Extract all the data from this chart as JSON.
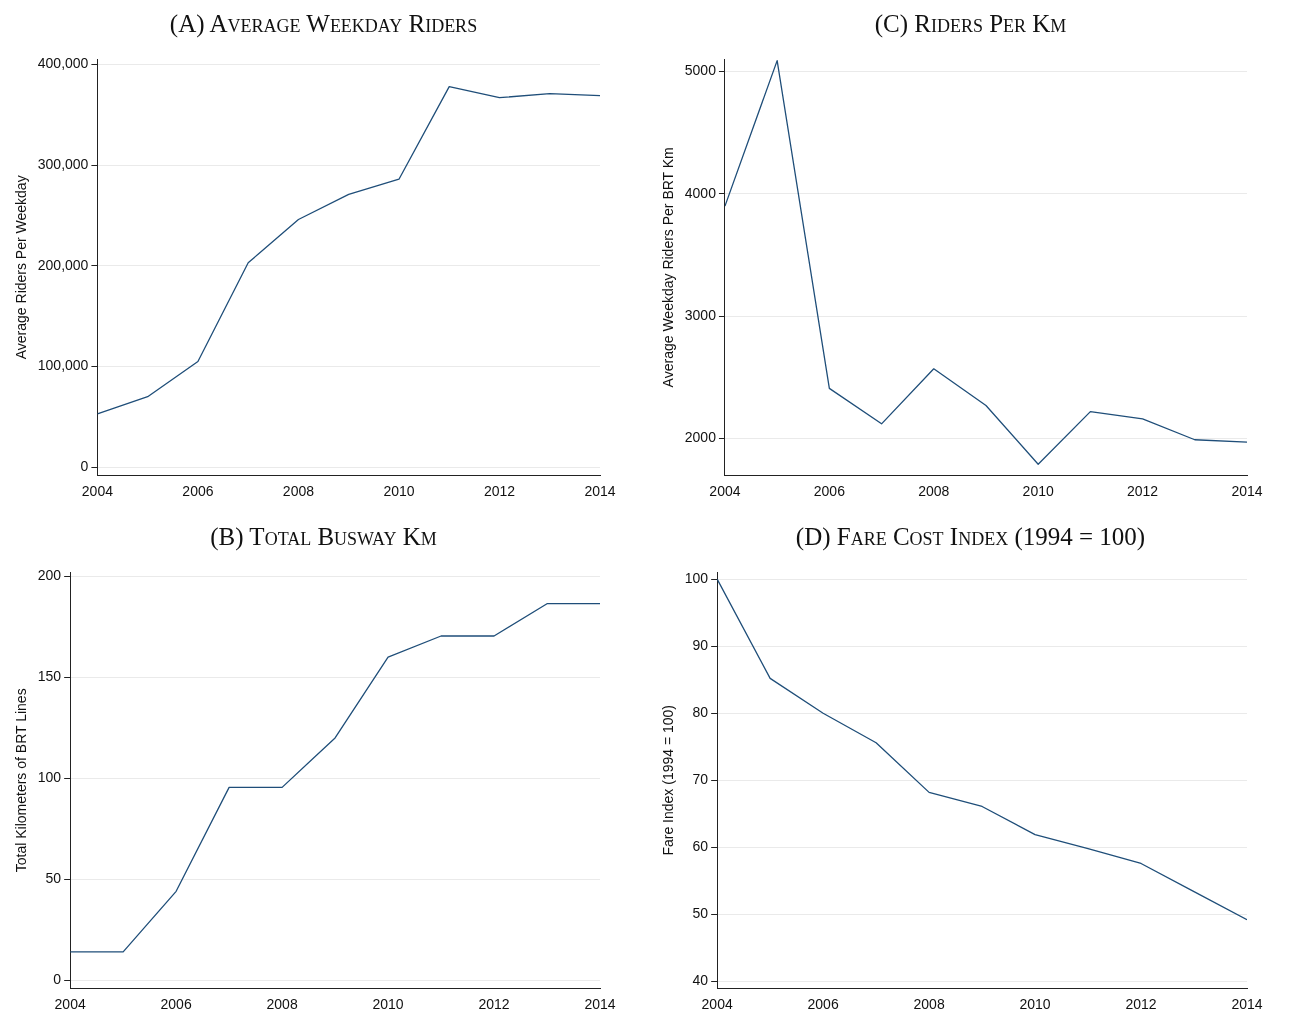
{
  "chart_data": [
    {
      "type": "line",
      "title": "(A) Average Weekday Riders",
      "ylabel": "Average Riders Per Weekday",
      "x": [
        2004,
        2005,
        2006,
        2007,
        2008,
        2009,
        2010,
        2011,
        2012,
        2013,
        2014
      ],
      "series": [
        {
          "color": "#1f4e79",
          "values": [
            53000,
            70000,
            105000,
            203000,
            246000,
            271000,
            286000,
            378000,
            367000,
            371000,
            369000
          ]
        }
      ],
      "xlim": [
        2004,
        2014
      ],
      "xticks": [
        2004,
        2006,
        2008,
        2010,
        2012,
        2014
      ],
      "ylim": [
        -8000,
        405000
      ],
      "yticks": [
        0,
        {
          "value": 100000,
          "label": "100,000"
        },
        {
          "value": 200000,
          "label": "200,000"
        },
        {
          "value": 300000,
          "label": "300,000"
        },
        {
          "value": 400000,
          "label": "400,000"
        }
      ],
      "grid": "y",
      "legend": false
    },
    {
      "type": "line",
      "title": "(C) Riders Per Km",
      "ylabel": "Average Weekday Riders Per BRT Km",
      "x": [
        2004,
        2005,
        2006,
        2007,
        2008,
        2009,
        2010,
        2011,
        2012,
        2013,
        2014
      ],
      "series": [
        {
          "color": "#1f4e79",
          "values": [
            3900,
            5090,
            2410,
            2120,
            2570,
            2270,
            1790,
            2220,
            2160,
            1990,
            1970
          ]
        }
      ],
      "xlim": [
        2004,
        2014
      ],
      "xticks": [
        2004,
        2006,
        2008,
        2010,
        2012,
        2014
      ],
      "ylim": [
        1700,
        5100
      ],
      "yticks": [
        2000,
        3000,
        4000,
        5000
      ],
      "grid": "y",
      "legend": false
    },
    {
      "type": "line",
      "title": "(B) Total Busway Km",
      "ylabel": "Total Kilometers of BRT Lines",
      "x": [
        2004,
        2005,
        2006,
        2007,
        2008,
        2009,
        2010,
        2011,
        2012,
        2013,
        2014
      ],
      "series": [
        {
          "color": "#1f4e79",
          "values": [
            14,
            14,
            44,
            95.5,
            95.5,
            120,
            160,
            170.5,
            170.5,
            186.5,
            186.5
          ]
        }
      ],
      "xlim": [
        2004,
        2014
      ],
      "xticks": [
        2004,
        2006,
        2008,
        2010,
        2012,
        2014
      ],
      "ylim": [
        -4,
        202
      ],
      "yticks": [
        0,
        50,
        100,
        150,
        200
      ],
      "grid": "y",
      "legend": false
    },
    {
      "type": "line",
      "title": "(D) Fare Cost Index (1994 = 100)",
      "ylabel": "Fare Index (1994 = 100)",
      "x": [
        2004,
        2005,
        2006,
        2007,
        2008,
        2009,
        2010,
        2011,
        2012,
        2013,
        2014
      ],
      "series": [
        {
          "color": "#1f4e79",
          "values": [
            100,
            85.2,
            80,
            75.6,
            68.2,
            66.1,
            61.9,
            59.8,
            57.6,
            53.4,
            49.2
          ]
        }
      ],
      "xlim": [
        2004,
        2014
      ],
      "xticks": [
        2004,
        2006,
        2008,
        2010,
        2012,
        2014
      ],
      "ylim": [
        39,
        101
      ],
      "yticks": [
        40,
        50,
        60,
        70,
        80,
        90,
        100
      ],
      "grid": "y",
      "legend": false
    }
  ]
}
